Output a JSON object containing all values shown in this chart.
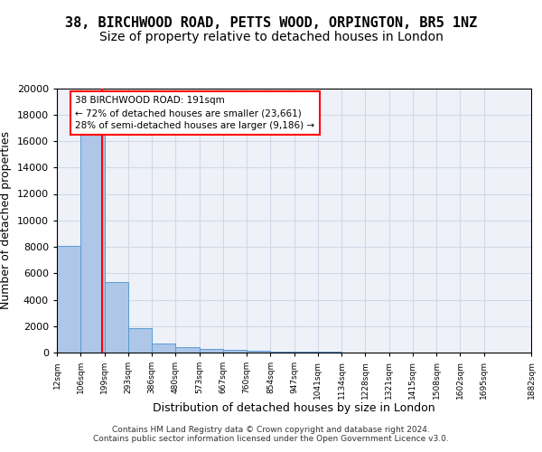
{
  "title1": "38, BIRCHWOOD ROAD, PETTS WOOD, ORPINGTON, BR5 1NZ",
  "title2": "Size of property relative to detached houses in London",
  "xlabel": "Distribution of detached houses by size in London",
  "ylabel": "Number of detached properties",
  "bar_values": [
    8100,
    16500,
    5300,
    1850,
    700,
    380,
    280,
    200,
    150,
    100,
    60,
    40,
    30,
    20,
    15,
    10,
    8,
    5,
    4
  ],
  "bin_edges": [
    12,
    106,
    199,
    293,
    386,
    480,
    573,
    667,
    760,
    854,
    947,
    1041,
    1134,
    1228,
    1321,
    1415,
    1508,
    1602,
    1695,
    1882
  ],
  "tick_labels": [
    "12sqm",
    "106sqm",
    "199sqm",
    "293sqm",
    "386sqm",
    "480sqm",
    "573sqm",
    "667sqm",
    "760sqm",
    "854sqm",
    "947sqm",
    "1041sqm",
    "1134sqm",
    "1228sqm",
    "1321sqm",
    "1415sqm",
    "1508sqm",
    "1602sqm",
    "1695sqm",
    "1882sqm"
  ],
  "property_size": 191,
  "bar_color": "#aec6e8",
  "bar_edge_color": "#5b9bd5",
  "vline_color": "#ff0000",
  "annotation_text": "38 BIRCHWOOD ROAD: 191sqm\n← 72% of detached houses are smaller (23,661)\n28% of semi-detached houses are larger (9,186) →",
  "annotation_box_color": "#ffffff",
  "annotation_box_edge": "#ff0000",
  "ylim": [
    0,
    20000
  ],
  "yticks": [
    0,
    2000,
    4000,
    6000,
    8000,
    10000,
    12000,
    14000,
    16000,
    18000,
    20000
  ],
  "grid_color": "#d0d8e8",
  "background_color": "#eef2f8",
  "footer": "Contains HM Land Registry data © Crown copyright and database right 2024.\nContains public sector information licensed under the Open Government Licence v3.0.",
  "title1_fontsize": 11,
  "title2_fontsize": 10,
  "xlabel_fontsize": 9,
  "ylabel_fontsize": 9
}
